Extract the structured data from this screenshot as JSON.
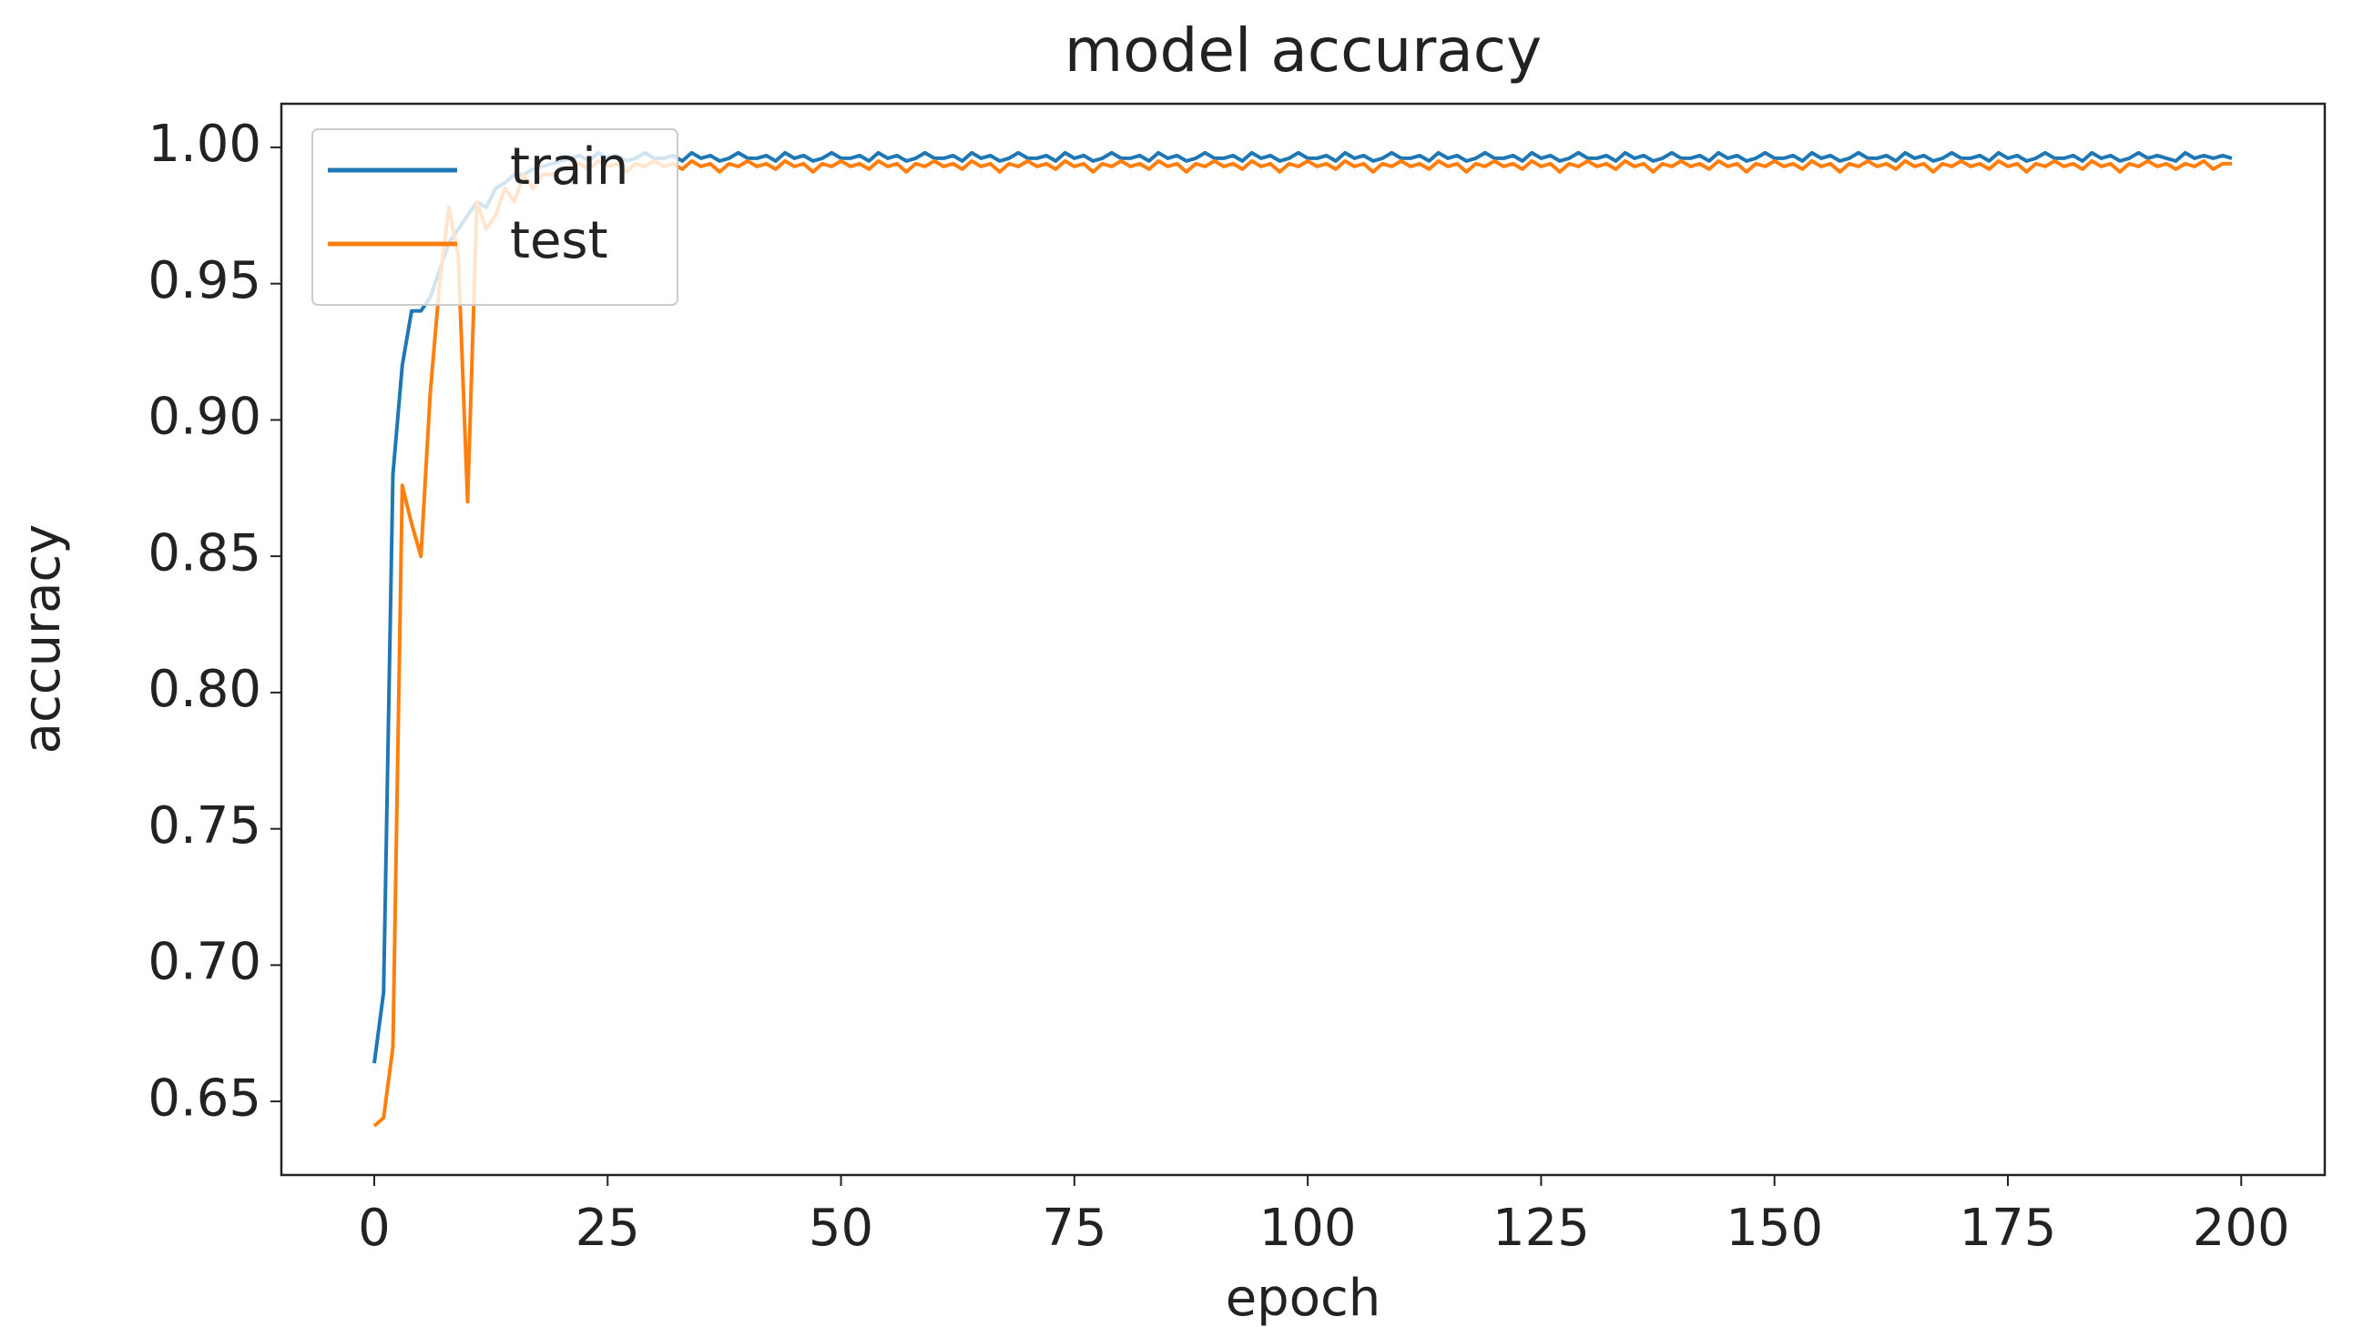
{
  "chart_data": {
    "type": "line",
    "title": "model accuracy",
    "x_label": "epoch",
    "y_label": "accuracy",
    "x": [
      0,
      1,
      2,
      3,
      4,
      5,
      6,
      7,
      8,
      9,
      10,
      11,
      12,
      13,
      14,
      15,
      16,
      17,
      18,
      19,
      20,
      21,
      22,
      23,
      24,
      25,
      26,
      27,
      28,
      29,
      30,
      31,
      32,
      33,
      34,
      35,
      36,
      37,
      38,
      39,
      40,
      41,
      42,
      43,
      44,
      45,
      46,
      47,
      48,
      49,
      50,
      51,
      52,
      53,
      54,
      55,
      56,
      57,
      58,
      59,
      60,
      61,
      62,
      63,
      64,
      65,
      66,
      67,
      68,
      69,
      70,
      71,
      72,
      73,
      74,
      75,
      76,
      77,
      78,
      79,
      80,
      81,
      82,
      83,
      84,
      85,
      86,
      87,
      88,
      89,
      90,
      91,
      92,
      93,
      94,
      95,
      96,
      97,
      98,
      99,
      100,
      101,
      102,
      103,
      104,
      105,
      106,
      107,
      108,
      109,
      110,
      111,
      112,
      113,
      114,
      115,
      116,
      117,
      118,
      119,
      120,
      121,
      122,
      123,
      124,
      125,
      126,
      127,
      128,
      129,
      130,
      131,
      132,
      133,
      134,
      135,
      136,
      137,
      138,
      139,
      140,
      141,
      142,
      143,
      144,
      145,
      146,
      147,
      148,
      149,
      150,
      151,
      152,
      153,
      154,
      155,
      156,
      157,
      158,
      159,
      160,
      161,
      162,
      163,
      164,
      165,
      166,
      167,
      168,
      169,
      170,
      171,
      172,
      173,
      174,
      175,
      176,
      177,
      178,
      179,
      180,
      181,
      182,
      183,
      184,
      185,
      186,
      187,
      188,
      189,
      190,
      191,
      192,
      193,
      194,
      195,
      196,
      197,
      198,
      199
    ],
    "series": [
      {
        "name": "train",
        "color": "#1f77b4",
        "values": [
          0.664,
          0.69,
          0.88,
          0.92,
          0.94,
          0.94,
          0.945,
          0.955,
          0.965,
          0.97,
          0.975,
          0.98,
          0.978,
          0.985,
          0.987,
          0.99,
          0.99,
          0.992,
          0.993,
          0.994,
          0.995,
          0.996,
          0.997,
          0.995,
          0.998,
          0.996,
          0.997,
          0.995,
          0.996,
          0.998,
          0.996,
          0.996,
          0.997,
          0.995,
          0.998,
          0.996,
          0.997,
          0.995,
          0.996,
          0.998,
          0.996,
          0.996,
          0.997,
          0.995,
          0.998,
          0.996,
          0.997,
          0.995,
          0.996,
          0.998,
          0.996,
          0.996,
          0.997,
          0.995,
          0.998,
          0.996,
          0.997,
          0.995,
          0.996,
          0.998,
          0.996,
          0.996,
          0.997,
          0.995,
          0.998,
          0.996,
          0.997,
          0.995,
          0.996,
          0.998,
          0.996,
          0.996,
          0.997,
          0.995,
          0.998,
          0.996,
          0.997,
          0.995,
          0.996,
          0.998,
          0.996,
          0.996,
          0.997,
          0.995,
          0.998,
          0.996,
          0.997,
          0.995,
          0.996,
          0.998,
          0.996,
          0.996,
          0.997,
          0.995,
          0.998,
          0.996,
          0.997,
          0.995,
          0.996,
          0.998,
          0.996,
          0.996,
          0.997,
          0.995,
          0.998,
          0.996,
          0.997,
          0.995,
          0.996,
          0.998,
          0.996,
          0.996,
          0.997,
          0.995,
          0.998,
          0.996,
          0.997,
          0.995,
          0.996,
          0.998,
          0.996,
          0.996,
          0.997,
          0.995,
          0.998,
          0.996,
          0.997,
          0.995,
          0.996,
          0.998,
          0.996,
          0.996,
          0.997,
          0.995,
          0.998,
          0.996,
          0.997,
          0.995,
          0.996,
          0.998,
          0.996,
          0.996,
          0.997,
          0.995,
          0.998,
          0.996,
          0.997,
          0.995,
          0.996,
          0.998,
          0.996,
          0.996,
          0.997,
          0.995,
          0.998,
          0.996,
          0.997,
          0.995,
          0.996,
          0.998,
          0.996,
          0.996,
          0.997,
          0.995,
          0.998,
          0.996,
          0.997,
          0.995,
          0.996,
          0.998,
          0.996,
          0.996,
          0.997,
          0.995,
          0.998,
          0.996,
          0.997,
          0.995,
          0.996,
          0.998,
          0.996,
          0.996,
          0.997,
          0.995,
          0.998,
          0.996,
          0.997,
          0.995,
          0.996,
          0.998,
          0.996,
          0.997,
          0.996,
          0.995,
          0.998,
          0.996,
          0.997,
          0.996,
          0.997,
          0.996
        ]
      },
      {
        "name": "test",
        "color": "#ff7f0e",
        "values": [
          0.641,
          0.644,
          0.67,
          0.876,
          0.862,
          0.85,
          0.91,
          0.95,
          0.978,
          0.96,
          0.87,
          0.98,
          0.97,
          0.975,
          0.985,
          0.98,
          0.99,
          0.985,
          0.99,
          0.99,
          0.992,
          0.993,
          0.994,
          0.992,
          0.995,
          0.993,
          0.994,
          0.991,
          0.994,
          0.993,
          0.995,
          0.993,
          0.994,
          0.992,
          0.995,
          0.993,
          0.994,
          0.991,
          0.994,
          0.993,
          0.995,
          0.993,
          0.994,
          0.992,
          0.995,
          0.993,
          0.994,
          0.991,
          0.994,
          0.993,
          0.995,
          0.993,
          0.994,
          0.992,
          0.995,
          0.993,
          0.994,
          0.991,
          0.994,
          0.993,
          0.995,
          0.993,
          0.994,
          0.992,
          0.995,
          0.993,
          0.994,
          0.991,
          0.994,
          0.993,
          0.995,
          0.993,
          0.994,
          0.992,
          0.995,
          0.993,
          0.994,
          0.991,
          0.994,
          0.993,
          0.995,
          0.993,
          0.994,
          0.992,
          0.995,
          0.993,
          0.994,
          0.991,
          0.994,
          0.993,
          0.995,
          0.993,
          0.994,
          0.992,
          0.995,
          0.993,
          0.994,
          0.991,
          0.994,
          0.993,
          0.995,
          0.993,
          0.994,
          0.992,
          0.995,
          0.993,
          0.994,
          0.991,
          0.994,
          0.993,
          0.995,
          0.993,
          0.994,
          0.992,
          0.995,
          0.993,
          0.994,
          0.991,
          0.994,
          0.993,
          0.995,
          0.993,
          0.994,
          0.992,
          0.995,
          0.993,
          0.994,
          0.991,
          0.994,
          0.993,
          0.995,
          0.993,
          0.994,
          0.992,
          0.995,
          0.993,
          0.994,
          0.991,
          0.994,
          0.993,
          0.995,
          0.993,
          0.994,
          0.992,
          0.995,
          0.993,
          0.994,
          0.991,
          0.994,
          0.993,
          0.995,
          0.993,
          0.994,
          0.992,
          0.995,
          0.993,
          0.994,
          0.991,
          0.994,
          0.993,
          0.995,
          0.993,
          0.994,
          0.992,
          0.995,
          0.993,
          0.994,
          0.991,
          0.994,
          0.993,
          0.995,
          0.993,
          0.994,
          0.992,
          0.995,
          0.993,
          0.994,
          0.991,
          0.994,
          0.993,
          0.995,
          0.993,
          0.994,
          0.992,
          0.995,
          0.993,
          0.994,
          0.991,
          0.994,
          0.993,
          0.995,
          0.993,
          0.994,
          0.992,
          0.994,
          0.993,
          0.995,
          0.992,
          0.994,
          0.994
        ]
      }
    ],
    "xlim": [
      -9.95,
      208.95
    ],
    "xticks": [
      0,
      25,
      50,
      75,
      100,
      125,
      150,
      175,
      200
    ],
    "ylim": [
      0.623,
      1.016
    ],
    "yticks": [
      0.65,
      {
        "value": 0.7,
        "label": "0.70"
      },
      0.75,
      {
        "value": 0.8,
        "label": "0.80"
      },
      0.85,
      {
        "value": 0.9,
        "label": "0.90"
      },
      0.95,
      {
        "value": 1,
        "label": "1.00"
      }
    ],
    "legend": "upper left",
    "grid": false
  }
}
